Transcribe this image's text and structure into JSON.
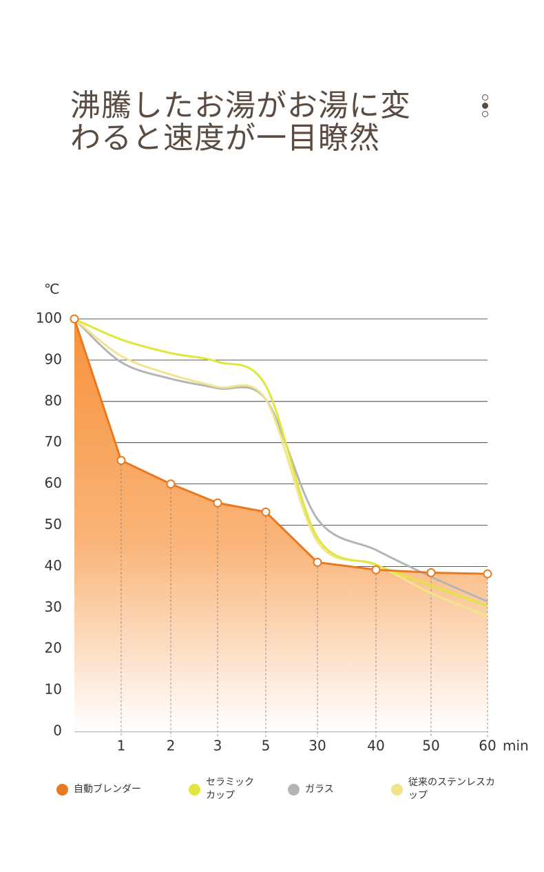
{
  "chart_data": {
    "type": "line",
    "title": [
      "沸騰したお湯がお湯に変",
      "わると速度が一目瞭然"
    ],
    "y_unit": "℃",
    "x_unit": "min",
    "categories": [
      null,
      "1",
      "2",
      "3",
      "5",
      "30",
      "40",
      "50",
      "60"
    ],
    "ylim": [
      0,
      100
    ],
    "yticks": [
      0,
      10,
      20,
      30,
      40,
      50,
      60,
      70,
      80,
      90,
      100
    ],
    "grid": true,
    "series": [
      {
        "name": "自動ブレンダー",
        "color": "#e8791f",
        "values": [
          100,
          65.7,
          60,
          55.4,
          53.2,
          41,
          39.2,
          38.5,
          38.2
        ]
      },
      {
        "name": "セラミックカップ",
        "color": "#dfe63c",
        "values": [
          100,
          95,
          91.7,
          89.6,
          83.8,
          47,
          40.4,
          35.4,
          30.4
        ]
      },
      {
        "name": "ガラス",
        "color": "#b4b4b4",
        "values": [
          100,
          89.5,
          85.5,
          83.2,
          80.5,
          51.5,
          44,
          37.5,
          31.5
        ]
      },
      {
        "name": "従来のステンレスカップ",
        "color": "#f1e48c",
        "values": [
          100,
          91,
          86.5,
          83.5,
          80.5,
          46,
          40.5,
          33.5,
          28
        ]
      }
    ]
  }
}
